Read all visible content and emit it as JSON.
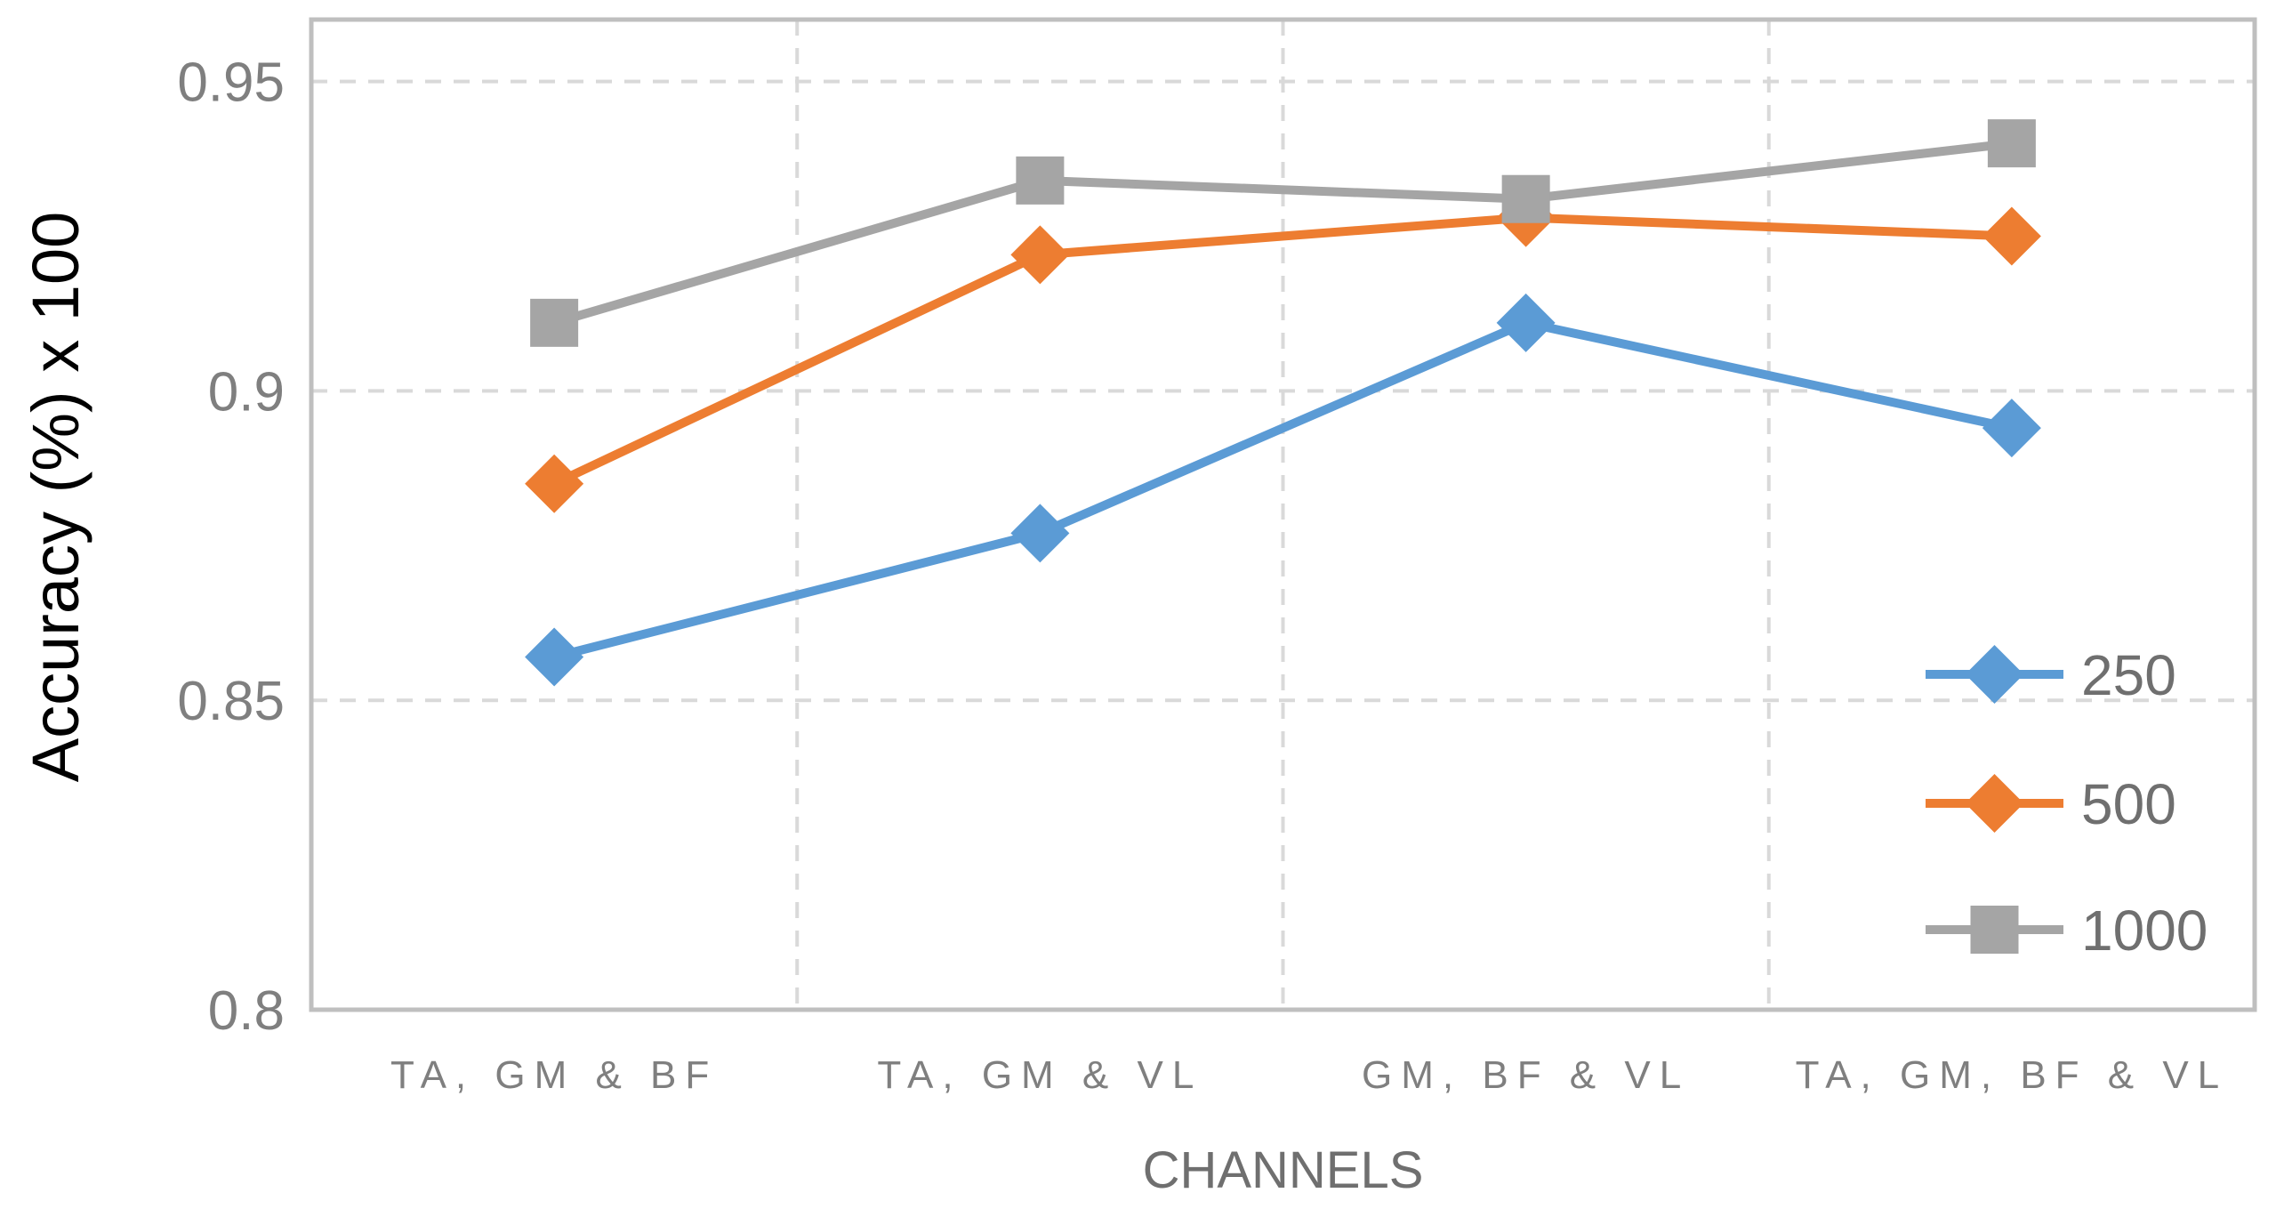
{
  "chart_data": {
    "type": "line",
    "title": "",
    "xlabel": "CHANNELS",
    "ylabel": "Accuracy (%) x 100",
    "categories": [
      "TA, GM & BF",
      "TA, GM & VL",
      "GM, BF & VL",
      "TA, GM, BF & VL"
    ],
    "ylim": [
      0.8,
      0.96
    ],
    "yticks": [
      0.8,
      0.85,
      0.9,
      0.95
    ],
    "ytick_labels": [
      "0.8",
      "0.85",
      "0.9",
      "0.95"
    ],
    "grid": true,
    "legend_position": "bottom-right",
    "series": [
      {
        "name": "250",
        "color": "#5b9bd5",
        "marker": "diamond",
        "values": [
          0.857,
          0.877,
          0.911,
          0.894
        ]
      },
      {
        "name": "500",
        "color": "#ed7d31",
        "marker": "diamond",
        "values": [
          0.885,
          0.922,
          0.928,
          0.925
        ]
      },
      {
        "name": "1000",
        "color": "#a5a5a5",
        "marker": "square",
        "values": [
          0.911,
          0.934,
          0.931,
          0.94
        ]
      }
    ]
  }
}
